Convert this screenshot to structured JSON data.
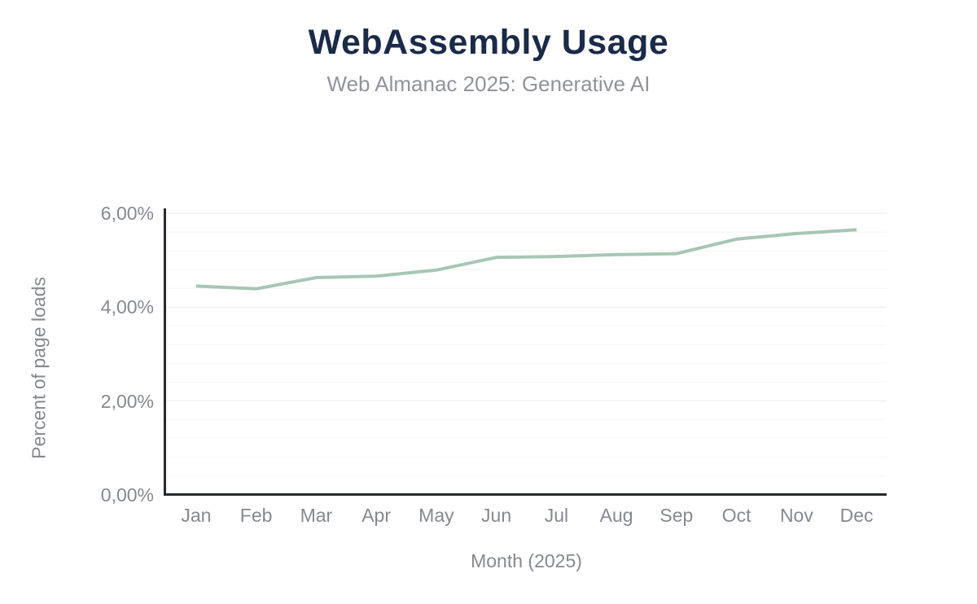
{
  "chart_data": {
    "type": "line",
    "title": "WebAssembly Usage",
    "subtitle": "Web Almanac 2025: Generative AI",
    "xlabel": "Month (2025)",
    "ylabel": "Percent of page loads",
    "categories": [
      "Jan",
      "Feb",
      "Mar",
      "Apr",
      "May",
      "Jun",
      "Jul",
      "Aug",
      "Sep",
      "Oct",
      "Nov",
      "Dec"
    ],
    "values": [
      4.45,
      4.39,
      4.63,
      4.66,
      4.79,
      5.06,
      5.08,
      5.12,
      5.14,
      5.45,
      5.57,
      5.65
    ],
    "ylim": [
      0,
      6
    ],
    "y_ticks": [
      {
        "value": 0,
        "label": "0,00%"
      },
      {
        "value": 2,
        "label": "2,00%"
      },
      {
        "value": 4,
        "label": "4,00%"
      },
      {
        "value": 6,
        "label": "6,00%"
      }
    ],
    "y_minor_tick_interval": 0.4,
    "grid": true,
    "legend_position": "none",
    "colors": {
      "background": "#ffffff",
      "line": "#a6c7b3",
      "title": "#1a2b49",
      "subtitle": "#909399",
      "axis_text": "#85898f",
      "axis_line": "#26292f",
      "grid_major": "#ececec",
      "grid_minor": "#f4f4f4"
    }
  }
}
